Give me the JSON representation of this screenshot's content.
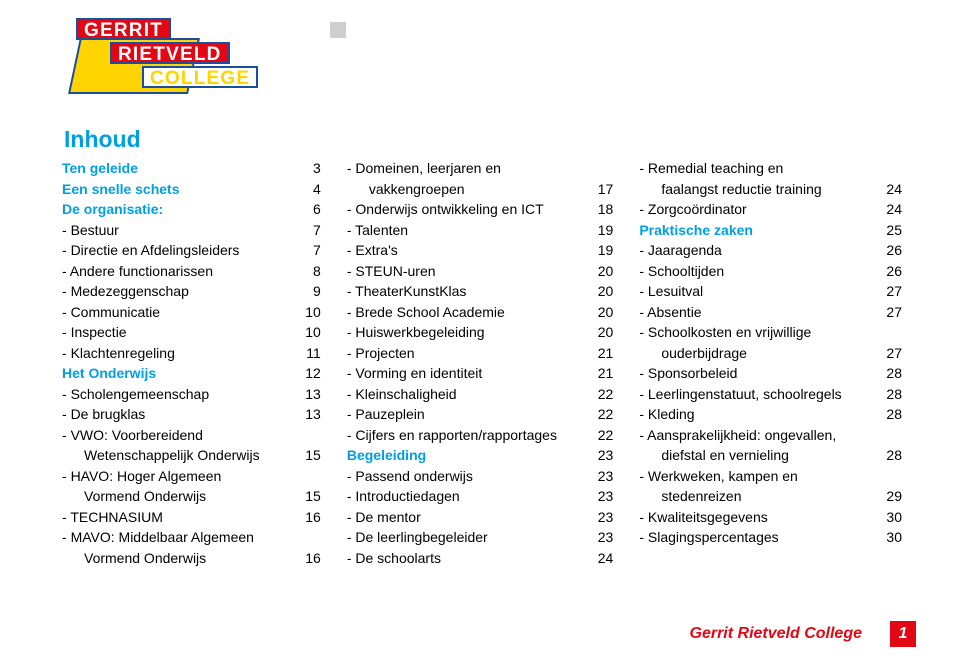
{
  "logo": {
    "line1": "GERRIT",
    "line2": "RIETVELD",
    "line3": "COLLEGE"
  },
  "title": "Inhoud",
  "col1": [
    {
      "style": "bold blue",
      "indent": 0,
      "label": "Ten geleide",
      "num": "3"
    },
    {
      "style": "bold blue",
      "indent": 0,
      "label": "Een snelle schets",
      "num": "4"
    },
    {
      "style": "bold blue",
      "indent": 0,
      "label": "De organisatie:",
      "num": "6"
    },
    {
      "indent": 1,
      "label": "Bestuur",
      "num": "7"
    },
    {
      "indent": 1,
      "label": "Directie en Afdelingsleiders",
      "num": "7"
    },
    {
      "indent": 1,
      "label": "Andere functionarissen",
      "num": "8"
    },
    {
      "indent": 1,
      "label": "Medezeggenschap",
      "num": "9"
    },
    {
      "indent": 1,
      "label": "Communicatie",
      "num": "10"
    },
    {
      "indent": 1,
      "label": "Inspectie",
      "num": "10"
    },
    {
      "indent": 1,
      "label": "Klachtenregeling",
      "num": "11"
    },
    {
      "style": "bold blue",
      "indent": 0,
      "label": "Het Onderwijs",
      "num": "12"
    },
    {
      "indent": 1,
      "label": "Scholengemeenschap",
      "num": "13"
    },
    {
      "indent": 1,
      "label": "De brugklas",
      "num": "13"
    },
    {
      "indent": 1,
      "label": "VWO: Voorbereidend",
      "num": ""
    },
    {
      "indent": 2,
      "label": "Wetenschappelijk Onderwijs",
      "num": "15"
    },
    {
      "indent": 1,
      "label": "HAVO: Hoger Algemeen",
      "num": ""
    },
    {
      "indent": 2,
      "label": "Vormend Onderwijs",
      "num": "15"
    },
    {
      "indent": 1,
      "label": "TECHNASIUM",
      "num": "16"
    },
    {
      "indent": 1,
      "label": "MAVO: Middelbaar Algemeen",
      "num": ""
    },
    {
      "indent": 2,
      "label": "Vormend Onderwijs",
      "num": "16"
    }
  ],
  "col2": [
    {
      "indent": 1,
      "label": "Domeinen, leerjaren en",
      "num": ""
    },
    {
      "indent": 2,
      "label": "vakkengroepen",
      "num": "17"
    },
    {
      "indent": 1,
      "label": "Onderwijs ontwikkeling en ICT",
      "num": "18"
    },
    {
      "indent": 1,
      "label": "Talenten",
      "num": "19"
    },
    {
      "indent": 1,
      "label": "Extra's",
      "num": "19"
    },
    {
      "indent": 1,
      "label": "STEUN-uren",
      "num": "20"
    },
    {
      "indent": 1,
      "label": "TheaterKunstKlas",
      "num": "20"
    },
    {
      "indent": 1,
      "label": "Brede School Academie",
      "num": "20"
    },
    {
      "indent": 1,
      "label": "Huiswerkbegeleiding",
      "num": "20"
    },
    {
      "indent": 1,
      "label": "Projecten",
      "num": "21"
    },
    {
      "indent": 1,
      "label": "Vorming en identiteit",
      "num": "21"
    },
    {
      "indent": 1,
      "label": "Kleinschaligheid",
      "num": "22"
    },
    {
      "indent": 1,
      "label": "Pauzeplein",
      "num": "22"
    },
    {
      "indent": 1,
      "label": "Cijfers en rapporten/rapportages",
      "num": "22"
    },
    {
      "style": "bold blue",
      "indent": 0,
      "label": "Begeleiding",
      "num": "23"
    },
    {
      "indent": 1,
      "label": "Passend onderwijs",
      "num": "23"
    },
    {
      "indent": 1,
      "label": "Introductiedagen",
      "num": "23"
    },
    {
      "indent": 1,
      "label": "De mentor",
      "num": "23"
    },
    {
      "indent": 1,
      "label": "De leerlingbegeleider",
      "num": "23"
    },
    {
      "indent": 1,
      "label": "De schoolarts",
      "num": "24"
    }
  ],
  "col3": [
    {
      "indent": 1,
      "label": "Remedial teaching en",
      "num": ""
    },
    {
      "indent": 2,
      "label": "faalangst reductie training",
      "num": "24"
    },
    {
      "indent": 1,
      "label": "Zorgcoördinator",
      "num": "24"
    },
    {
      "style": "bold blue",
      "indent": 0,
      "label": "Praktische zaken",
      "num": "25"
    },
    {
      "indent": 1,
      "label": "Jaaragenda",
      "num": "26"
    },
    {
      "indent": 1,
      "label": "Schooltijden",
      "num": "26"
    },
    {
      "indent": 1,
      "label": "Lesuitval",
      "num": "27"
    },
    {
      "indent": 1,
      "label": "Absentie",
      "num": "27"
    },
    {
      "indent": 1,
      "label": "Schoolkosten en vrijwillige",
      "num": ""
    },
    {
      "indent": 2,
      "label": "ouderbijdrage",
      "num": "27"
    },
    {
      "indent": 1,
      "label": "Sponsorbeleid",
      "num": "28"
    },
    {
      "indent": 1,
      "label": "Leerlingenstatuut, schoolregels",
      "num": "28"
    },
    {
      "indent": 1,
      "label": "Kleding",
      "num": "28"
    },
    {
      "indent": 1,
      "label": "Aansprakelijkheid: ongevallen,",
      "num": ""
    },
    {
      "indent": 2,
      "label": "diefstal en vernieling",
      "num": "28"
    },
    {
      "indent": 1,
      "label": "Werkweken, kampen en",
      "num": ""
    },
    {
      "indent": 2,
      "label": "stedenreizen",
      "num": "29"
    },
    {
      "indent": 1,
      "label": "Kwaliteitsgegevens",
      "num": "30"
    },
    {
      "indent": 1,
      "label": "Slagingspercentages",
      "num": "30"
    }
  ],
  "footer": {
    "label": "Gerrit Rietveld College",
    "page": "1"
  },
  "colors": {
    "accent_blue": "#009fe3",
    "brand_red": "#e30613",
    "brand_yellow": "#ffd400",
    "brand_darkblue": "#1a4fa0",
    "text": "#000000",
    "bg": "#ffffff"
  }
}
